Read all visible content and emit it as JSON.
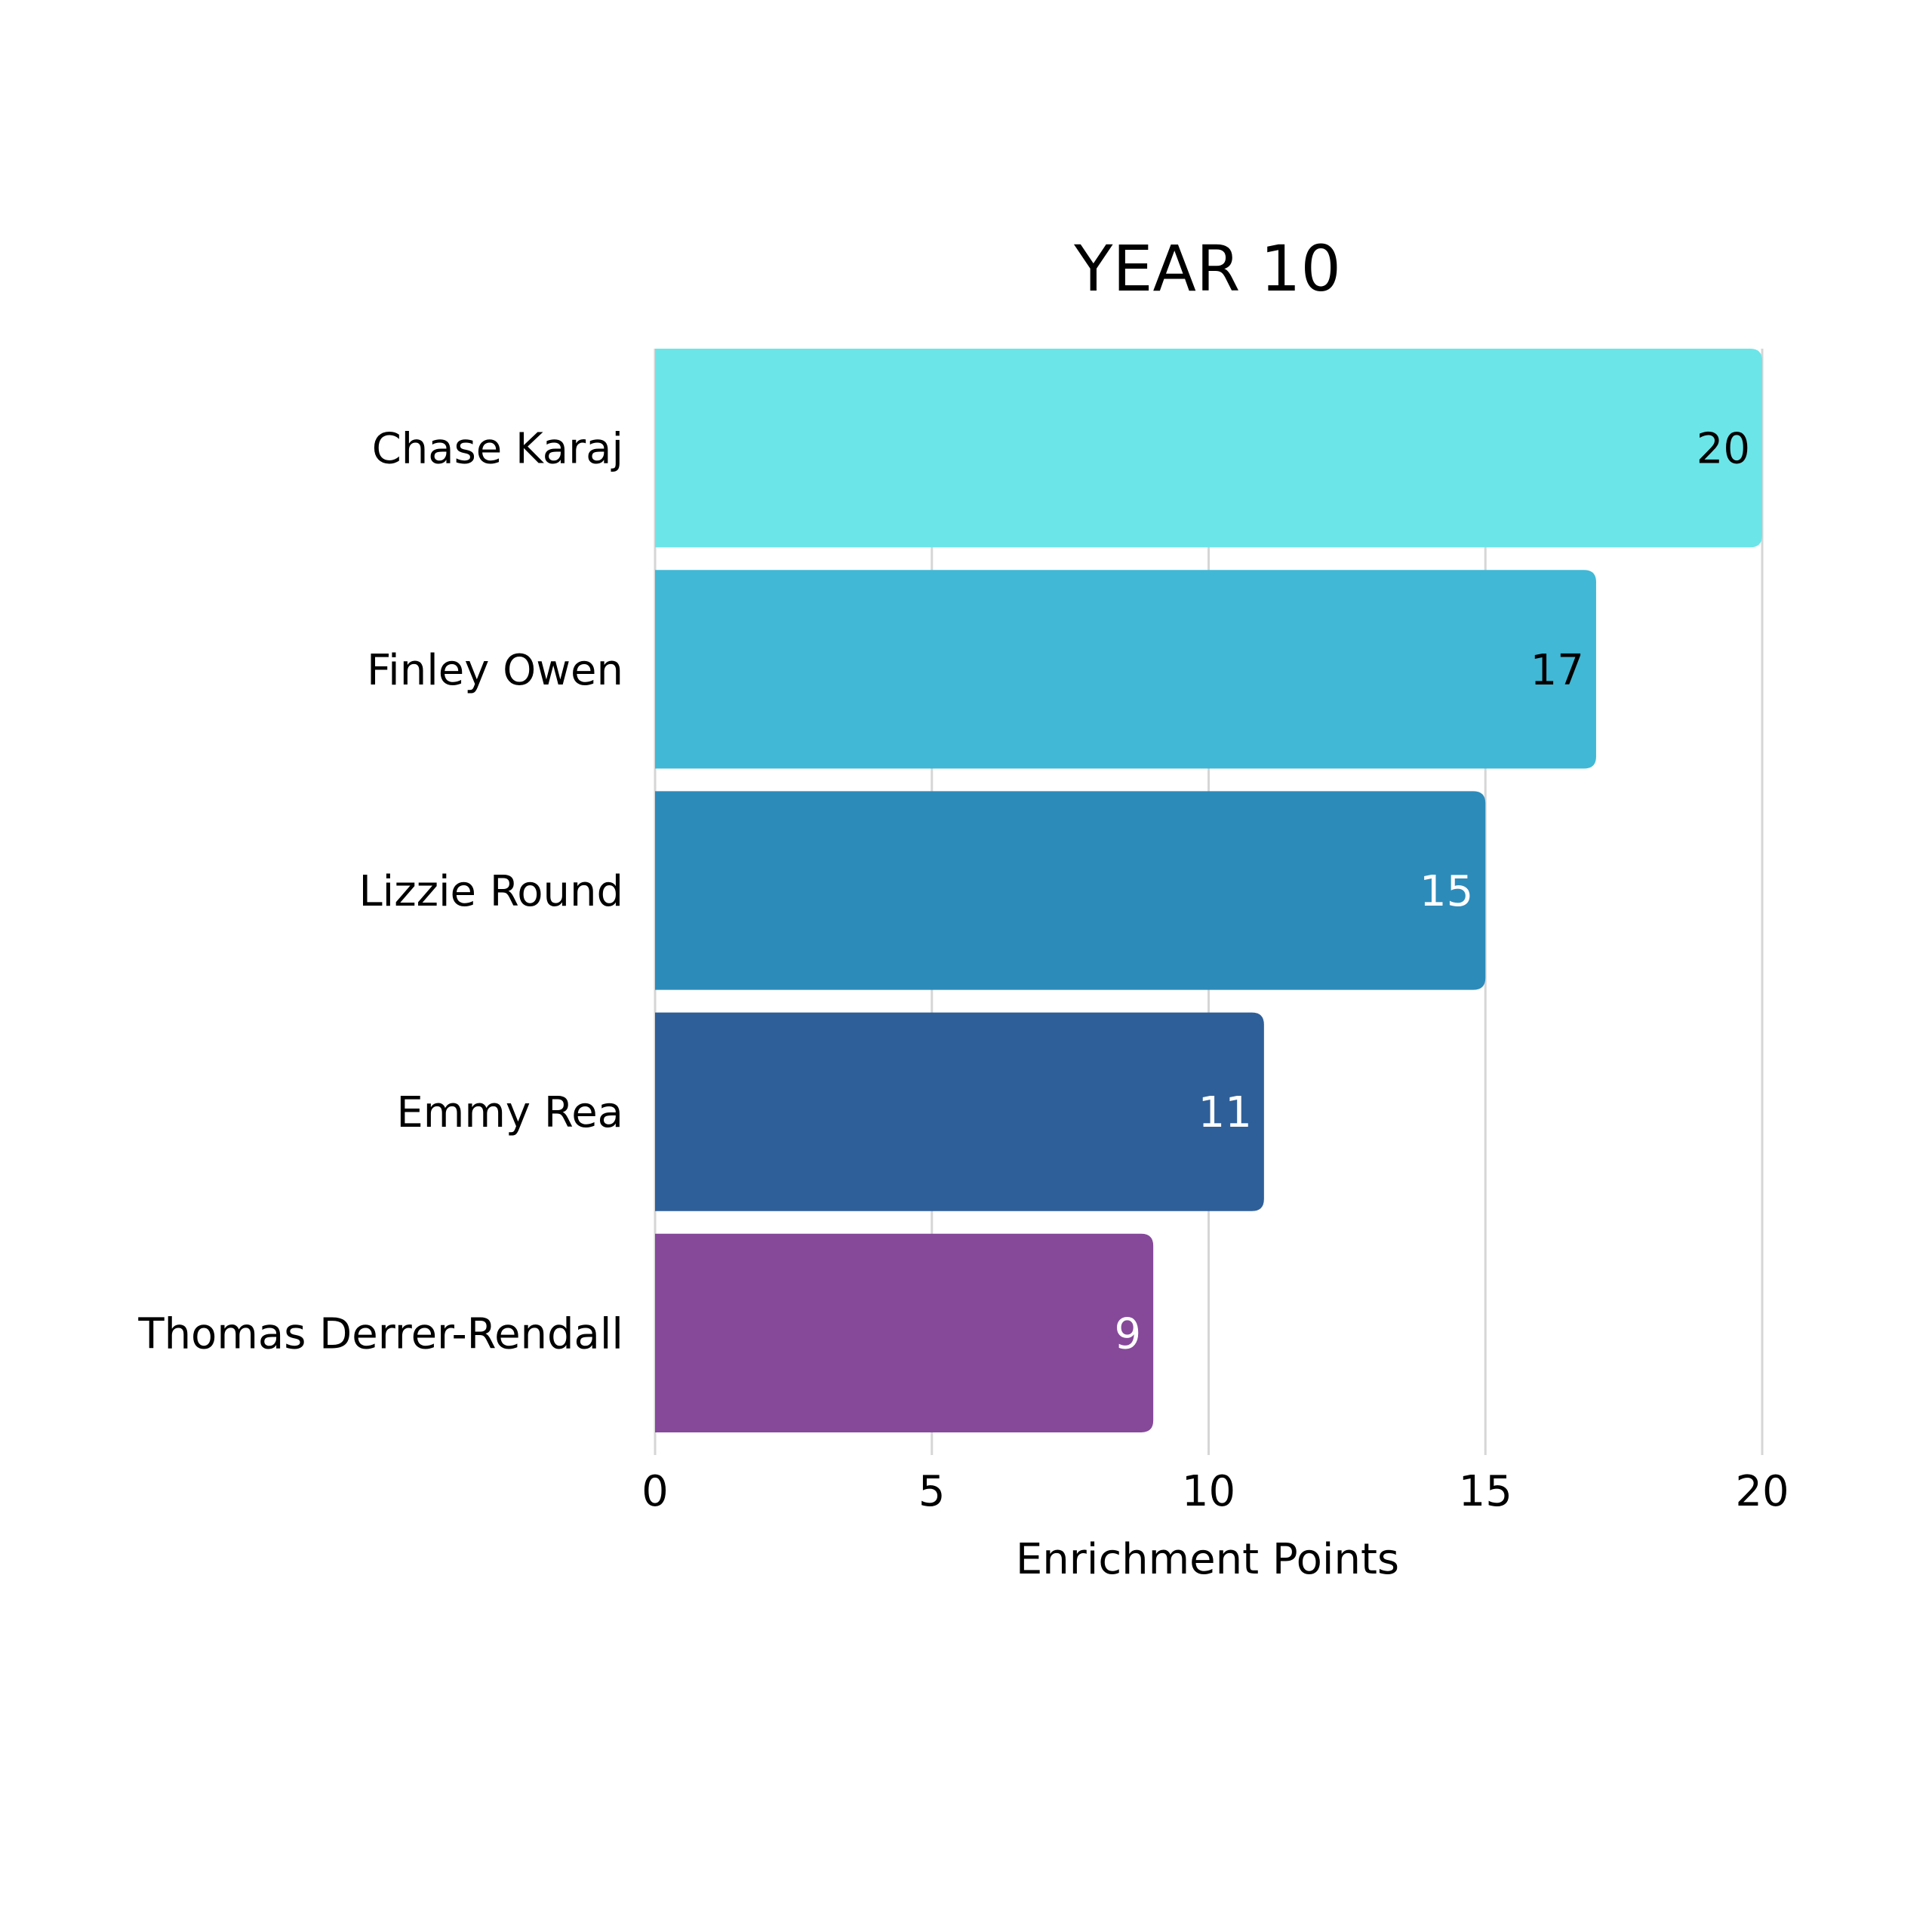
{
  "chart_data": {
    "type": "bar",
    "orientation": "horizontal",
    "title": "YEAR 10",
    "xlabel": "Enrichment Points",
    "ylabel": "",
    "categories": [
      "Chase Karaj",
      "Finley Owen",
      "Lizzie Round",
      "Emmy Rea",
      "Thomas Derrer-Rendall"
    ],
    "values": [
      20,
      17,
      15,
      11,
      9
    ],
    "data_labels": [
      "20",
      "17",
      "15",
      "11",
      "9"
    ],
    "bar_colors": [
      "#6ce5e8",
      "#41b8d5",
      "#2d8bba",
      "#2f5f98",
      "#86499a"
    ],
    "label_colors": [
      "#000000",
      "#000000",
      "#ffffff",
      "#ffffff",
      "#ffffff"
    ],
    "xlim": [
      0,
      20
    ],
    "xticks": [
      0,
      5,
      10,
      15,
      20
    ],
    "xtick_labels": [
      "0",
      "5",
      "10",
      "15",
      "20"
    ],
    "grid": "vertical",
    "legend": "none"
  }
}
